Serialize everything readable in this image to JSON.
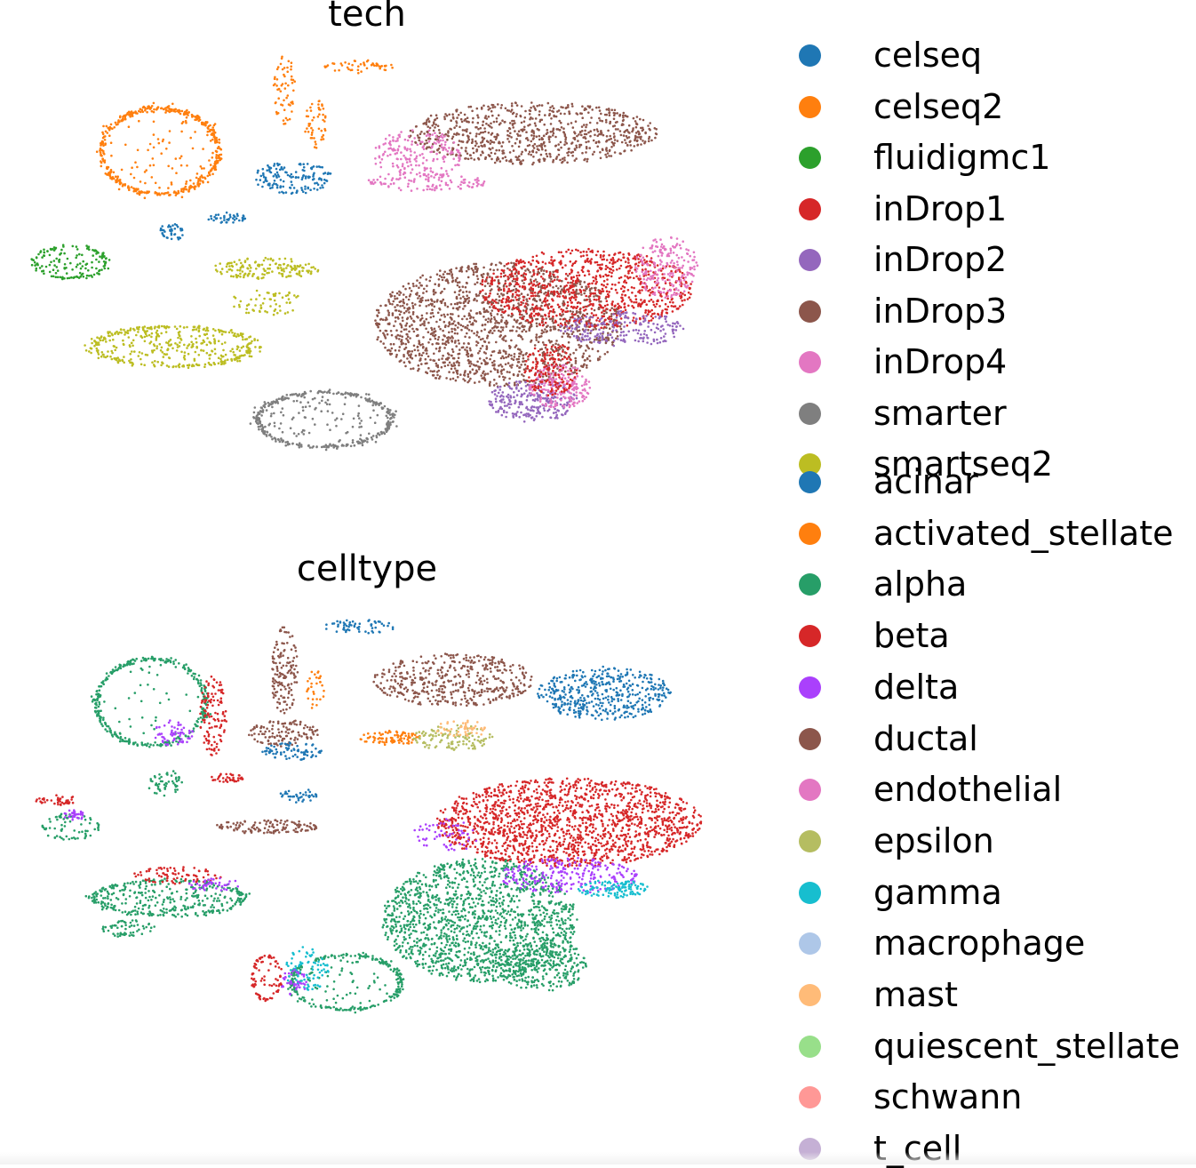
{
  "chart_data": [
    {
      "type": "scatter",
      "title": "tech",
      "xlabel": "",
      "ylabel": "",
      "grid": false,
      "axes_visible": false,
      "legend_position": "right",
      "series": [
        {
          "name": "celseq",
          "color": "#1f77b4"
        },
        {
          "name": "celseq2",
          "color": "#ff7f0e"
        },
        {
          "name": "fluidigmc1",
          "color": "#2ca02c"
        },
        {
          "name": "inDrop1",
          "color": "#d62728"
        },
        {
          "name": "inDrop2",
          "color": "#9467bd"
        },
        {
          "name": "inDrop3",
          "color": "#8c564b"
        },
        {
          "name": "inDrop4",
          "color": "#e377c2"
        },
        {
          "name": "smarter",
          "color": "#7f7f7f"
        },
        {
          "name": "smartseq2",
          "color": "#bcbd22"
        }
      ]
    },
    {
      "type": "scatter",
      "title": "celltype",
      "xlabel": "",
      "ylabel": "",
      "grid": false,
      "axes_visible": false,
      "legend_position": "right",
      "series": [
        {
          "name": "acinar",
          "color": "#1f77b4"
        },
        {
          "name": "activated_stellate",
          "color": "#ff7f0e"
        },
        {
          "name": "alpha",
          "color": "#279e68"
        },
        {
          "name": "beta",
          "color": "#d62728"
        },
        {
          "name": "delta",
          "color": "#aa40fc"
        },
        {
          "name": "ductal",
          "color": "#8c564b"
        },
        {
          "name": "endothelial",
          "color": "#e377c2"
        },
        {
          "name": "epsilon",
          "color": "#b5bd61"
        },
        {
          "name": "gamma",
          "color": "#17becf"
        },
        {
          "name": "macrophage",
          "color": "#aec7e8"
        },
        {
          "name": "mast",
          "color": "#ffbb78"
        },
        {
          "name": "quiescent_stellate",
          "color": "#98df8a"
        },
        {
          "name": "schwann",
          "color": "#ff9896"
        },
        {
          "name": "t_cell",
          "color": "#c5b0d5"
        }
      ]
    }
  ]
}
